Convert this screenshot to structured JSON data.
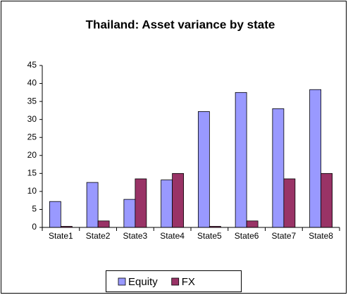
{
  "chart_data": {
    "type": "bar",
    "title": "Thailand: Asset variance by state",
    "categories": [
      "State1",
      "State2",
      "State3",
      "State4",
      "State5",
      "State6",
      "State7",
      "State8"
    ],
    "series": [
      {
        "name": "Equity",
        "color": "#9999ff",
        "values": [
          7.2,
          12.5,
          7.8,
          13.2,
          32.2,
          37.5,
          33,
          38.3
        ]
      },
      {
        "name": "FX",
        "color": "#993366",
        "values": [
          0.3,
          1.8,
          13.5,
          15,
          0.3,
          1.8,
          13.5,
          15
        ]
      }
    ],
    "ylim": [
      0,
      45
    ],
    "yticks": [
      0,
      5,
      10,
      15,
      20,
      25,
      30,
      35,
      40,
      45
    ],
    "grid": false,
    "legend": "bottom"
  }
}
